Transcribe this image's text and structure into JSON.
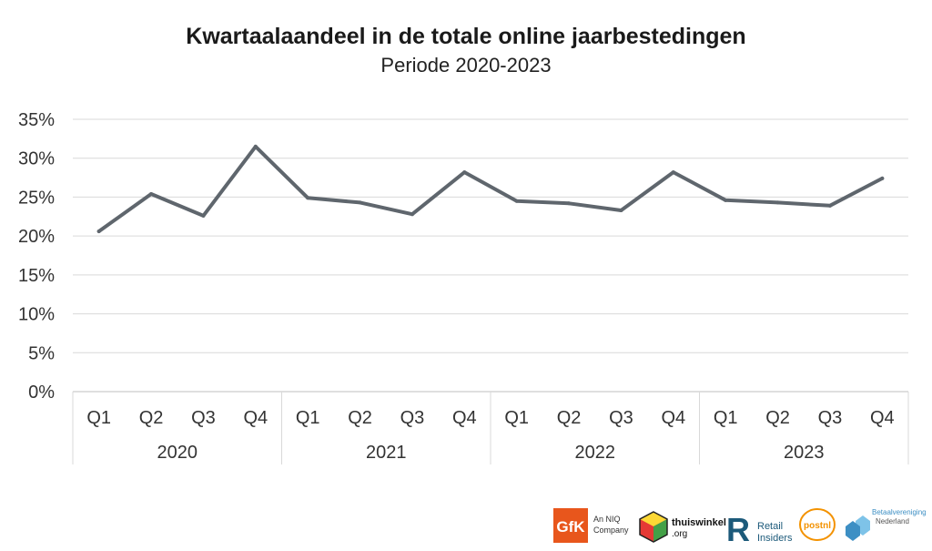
{
  "chart_data": {
    "type": "line",
    "title": "Kwartaalaandeel in de totale online jaarbestedingen",
    "subtitle": "Periode 2020-2023",
    "quarters": [
      "Q1",
      "Q2",
      "Q3",
      "Q4",
      "Q1",
      "Q2",
      "Q3",
      "Q4",
      "Q1",
      "Q2",
      "Q3",
      "Q4",
      "Q1",
      "Q2",
      "Q3",
      "Q4"
    ],
    "years": [
      "2020",
      "2021",
      "2022",
      "2023"
    ],
    "yticks": [
      "0%",
      "5%",
      "10%",
      "15%",
      "20%",
      "25%",
      "30%",
      "35%"
    ],
    "ylim": [
      0,
      35
    ],
    "grid": true,
    "series": [
      {
        "values": [
          20.6,
          25.4,
          22.6,
          31.5,
          24.9,
          24.3,
          22.8,
          28.2,
          24.5,
          24.2,
          23.3,
          28.2,
          24.6,
          24.3,
          23.9,
          27.4
        ],
        "color": "#5f666d"
      }
    ]
  },
  "logos": {
    "gfk": "GfK",
    "gfk_tag_1": "An NIQ",
    "gfk_tag_2": "Company",
    "thuiswinkel_1": "thuiswinkel",
    "thuiswinkel_2": ".org",
    "retail_1": "Retail",
    "retail_2": "Insiders",
    "postnl": "postnl",
    "betaal_1": "Betaalvereniging",
    "betaal_2": "Nederland"
  }
}
